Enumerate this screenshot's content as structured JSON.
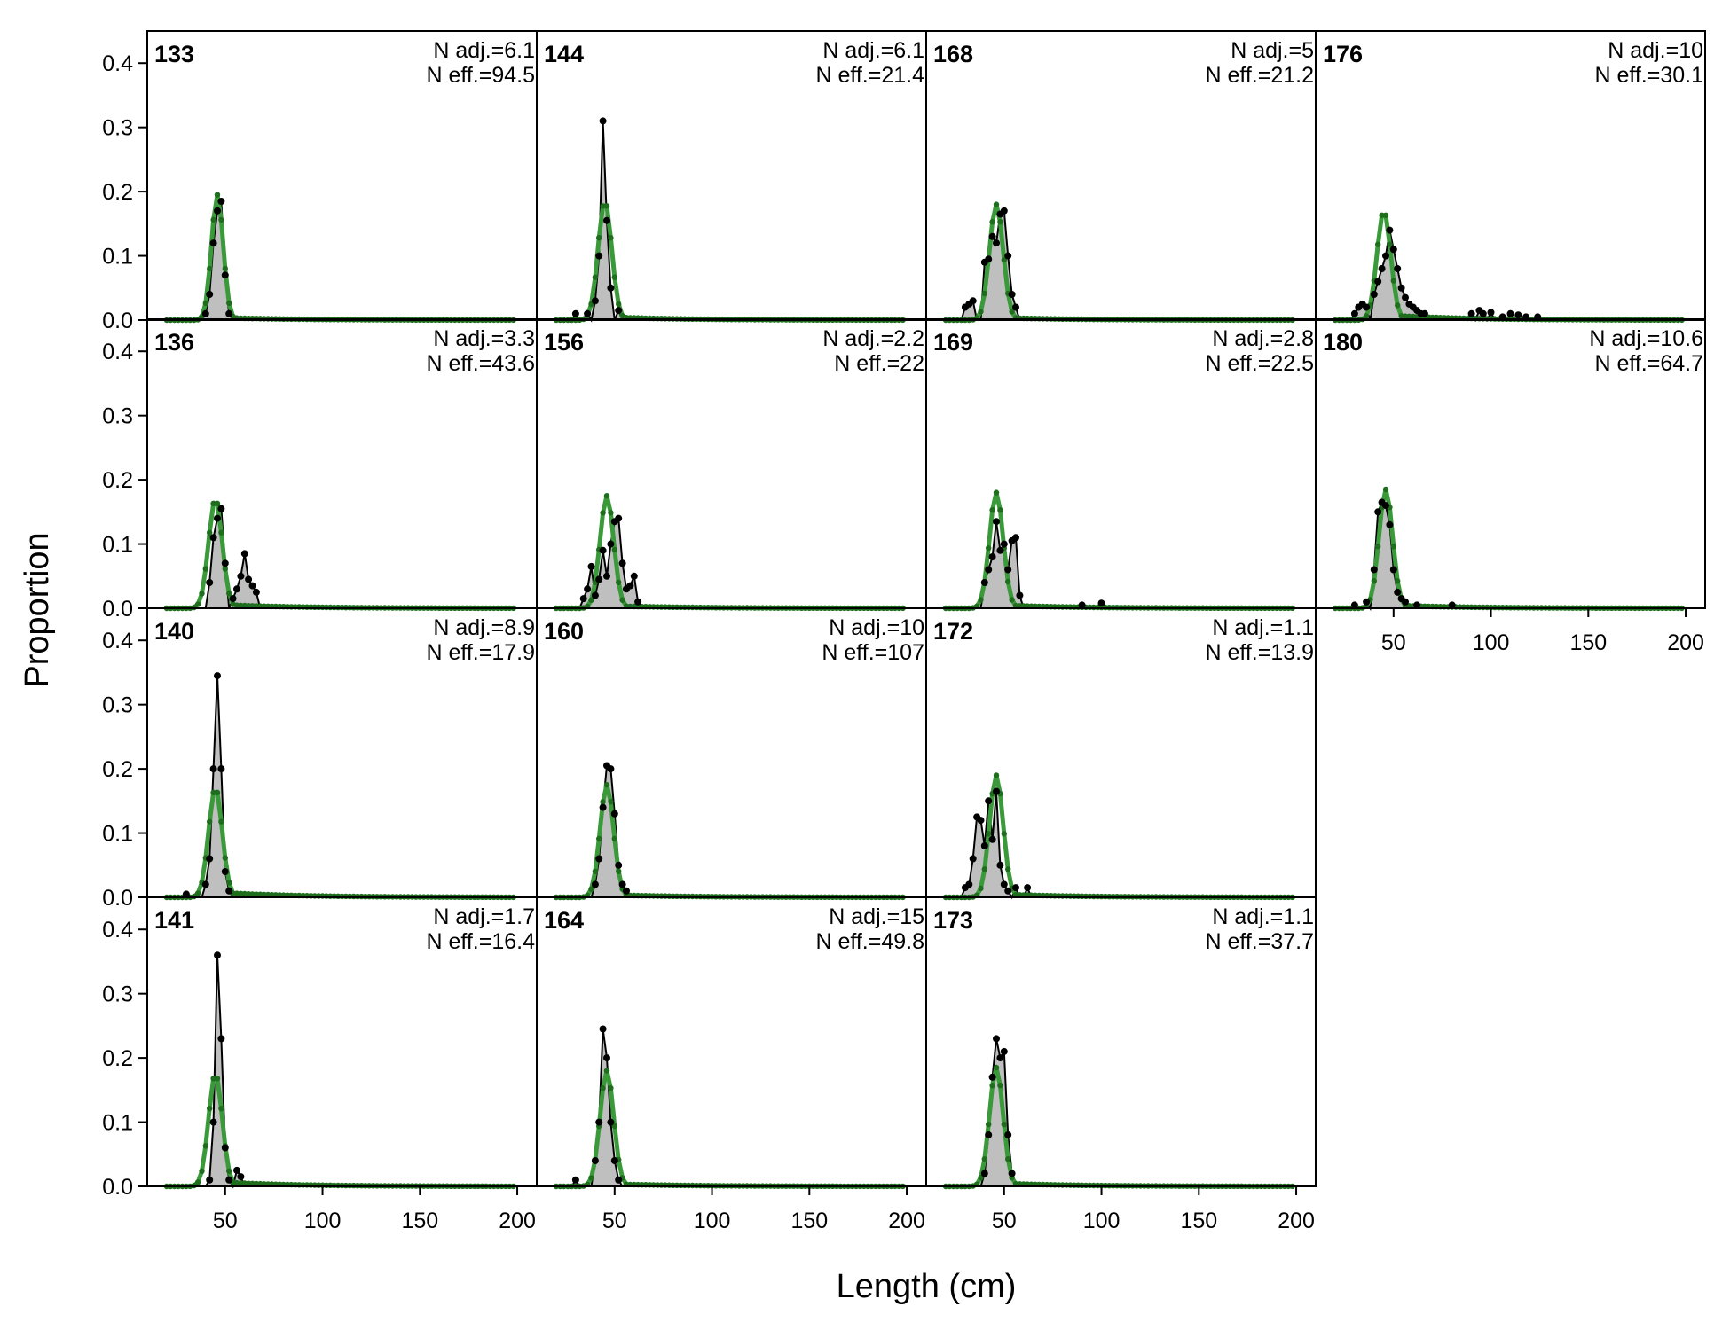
{
  "figure": {
    "xlabel": "Length (cm)",
    "ylabel": "Proportion"
  },
  "chart_data": {
    "type": "area",
    "xlim": [
      10,
      210
    ],
    "ylim": [
      0,
      0.45
    ],
    "x_ticks": [
      50,
      100,
      150,
      200
    ],
    "y_ticks": [
      "0.0",
      "0.1",
      "0.2",
      "0.3",
      "0.4"
    ],
    "colors": {
      "observed_fill": "#bfbfbf",
      "observed_line": "#000000",
      "expected_line": "#3a9a3a",
      "expected_points": "#1e6e1e",
      "zero_line": "#b0b0b0"
    },
    "bins": {
      "start": 20,
      "end": 198,
      "step": 2
    },
    "panels": [
      {
        "id": "133",
        "n_adj": "N adj.=6.1",
        "n_eff": "N eff.=94.5",
        "obs": [
          [
            40,
            0.01
          ],
          [
            42,
            0.04
          ],
          [
            44,
            0.12
          ],
          [
            46,
            0.17
          ],
          [
            48,
            0.185
          ],
          [
            50,
            0.07
          ],
          [
            52,
            0.01
          ]
        ],
        "exp": [
          46,
          0.195,
          3.0,
          0.004
        ]
      },
      {
        "id": "136",
        "n_adj": "N adj.=3.3",
        "n_eff": "N eff.=43.6",
        "obs": [
          [
            42,
            0.04
          ],
          [
            44,
            0.11
          ],
          [
            46,
            0.14
          ],
          [
            48,
            0.155
          ],
          [
            50,
            0.07
          ],
          [
            54,
            0.015
          ],
          [
            56,
            0.03
          ],
          [
            58,
            0.05
          ],
          [
            60,
            0.085
          ],
          [
            62,
            0.045
          ],
          [
            64,
            0.035
          ],
          [
            66,
            0.025
          ]
        ],
        "exp": [
          45,
          0.17,
          3.5,
          0.006
        ]
      },
      {
        "id": "140",
        "n_adj": "N adj.=8.9",
        "n_eff": "N eff.=17.9",
        "obs": [
          [
            30,
            0.005
          ],
          [
            40,
            0.02
          ],
          [
            42,
            0.06
          ],
          [
            44,
            0.2
          ],
          [
            46,
            0.345
          ],
          [
            48,
            0.2
          ],
          [
            50,
            0.04
          ],
          [
            52,
            0.01
          ]
        ],
        "exp": [
          45,
          0.17,
          3.5,
          0.008
        ]
      },
      {
        "id": "141",
        "n_adj": "N adj.=1.7",
        "n_eff": "N eff.=16.4",
        "obs": [
          [
            42,
            0.01
          ],
          [
            44,
            0.1
          ],
          [
            46,
            0.36
          ],
          [
            48,
            0.23
          ],
          [
            50,
            0.06
          ],
          [
            52,
            0.01
          ],
          [
            56,
            0.025
          ],
          [
            58,
            0.015
          ]
        ],
        "exp": [
          45,
          0.175,
          3.5,
          0.007
        ]
      },
      {
        "id": "144",
        "n_adj": "N adj.=6.1",
        "n_eff": "N eff.=21.4",
        "obs": [
          [
            30,
            0.01
          ],
          [
            36,
            0.01
          ],
          [
            40,
            0.03
          ],
          [
            42,
            0.1
          ],
          [
            44,
            0.31
          ],
          [
            46,
            0.155
          ],
          [
            48,
            0.05
          ],
          [
            52,
            0.015
          ]
        ],
        "exp": [
          45,
          0.185,
          3.5,
          0.005
        ]
      },
      {
        "id": "156",
        "n_adj": "N adj.=2.2",
        "n_eff": "N eff.=22",
        "obs": [
          [
            34,
            0.015
          ],
          [
            36,
            0.03
          ],
          [
            38,
            0.065
          ],
          [
            40,
            0.02
          ],
          [
            42,
            0.045
          ],
          [
            44,
            0.09
          ],
          [
            46,
            0.05
          ],
          [
            48,
            0.1
          ],
          [
            50,
            0.135
          ],
          [
            52,
            0.14
          ],
          [
            54,
            0.07
          ],
          [
            56,
            0.03
          ],
          [
            58,
            0.035
          ],
          [
            60,
            0.05
          ],
          [
            62,
            0.01
          ]
        ],
        "exp": [
          46,
          0.175,
          3.5,
          0.004
        ]
      },
      {
        "id": "160",
        "n_adj": "N adj.=10",
        "n_eff": "N eff.=107",
        "obs": [
          [
            40,
            0.02
          ],
          [
            42,
            0.06
          ],
          [
            44,
            0.14
          ],
          [
            46,
            0.205
          ],
          [
            48,
            0.2
          ],
          [
            50,
            0.13
          ],
          [
            52,
            0.05
          ],
          [
            54,
            0.02
          ],
          [
            56,
            0.01
          ]
        ],
        "exp": [
          46,
          0.175,
          3.5,
          0.004
        ]
      },
      {
        "id": "164",
        "n_adj": "N adj.=15",
        "n_eff": "N eff.=49.8",
        "obs": [
          [
            30,
            0.01
          ],
          [
            40,
            0.04
          ],
          [
            42,
            0.1
          ],
          [
            44,
            0.245
          ],
          [
            46,
            0.2
          ],
          [
            48,
            0.1
          ],
          [
            50,
            0.04
          ],
          [
            52,
            0.01
          ]
        ],
        "exp": [
          46,
          0.18,
          3.5,
          0.004
        ]
      },
      {
        "id": "168",
        "n_adj": "N adj.=5",
        "n_eff": "N eff.=21.2",
        "obs": [
          [
            30,
            0.02
          ],
          [
            32,
            0.025
          ],
          [
            34,
            0.03
          ],
          [
            40,
            0.09
          ],
          [
            42,
            0.095
          ],
          [
            44,
            0.13
          ],
          [
            46,
            0.12
          ],
          [
            48,
            0.165
          ],
          [
            50,
            0.17
          ],
          [
            52,
            0.1
          ],
          [
            54,
            0.04
          ],
          [
            56,
            0.02
          ]
        ],
        "exp": [
          46,
          0.18,
          3.5,
          0.004
        ]
      },
      {
        "id": "169",
        "n_adj": "N adj.=2.8",
        "n_eff": "N eff.=22.5",
        "obs": [
          [
            40,
            0.04
          ],
          [
            42,
            0.06
          ],
          [
            44,
            0.08
          ],
          [
            46,
            0.135
          ],
          [
            48,
            0.09
          ],
          [
            50,
            0.1
          ],
          [
            52,
            0.06
          ],
          [
            54,
            0.105
          ],
          [
            56,
            0.11
          ],
          [
            58,
            0.02
          ],
          [
            90,
            0.005
          ],
          [
            100,
            0.008
          ]
        ],
        "exp": [
          46,
          0.18,
          3.5,
          0.005
        ]
      },
      {
        "id": "172",
        "n_adj": "N adj.=1.1",
        "n_eff": "N eff.=13.9",
        "obs": [
          [
            30,
            0.015
          ],
          [
            32,
            0.02
          ],
          [
            34,
            0.06
          ],
          [
            36,
            0.125
          ],
          [
            38,
            0.12
          ],
          [
            40,
            0.08
          ],
          [
            42,
            0.15
          ],
          [
            44,
            0.09
          ],
          [
            46,
            0.165
          ],
          [
            48,
            0.05
          ],
          [
            50,
            0.02
          ],
          [
            52,
            0.01
          ],
          [
            56,
            0.015
          ],
          [
            62,
            0.015
          ]
        ],
        "exp": [
          46,
          0.19,
          3.5,
          0.005
        ]
      },
      {
        "id": "173",
        "n_adj": "N adj.=1.1",
        "n_eff": "N eff.=37.7",
        "obs": [
          [
            40,
            0.02
          ],
          [
            42,
            0.08
          ],
          [
            44,
            0.17
          ],
          [
            46,
            0.23
          ],
          [
            48,
            0.2
          ],
          [
            50,
            0.21
          ],
          [
            52,
            0.08
          ],
          [
            54,
            0.02
          ]
        ],
        "exp": [
          46,
          0.185,
          3.5,
          0.005
        ]
      },
      {
        "id": "176",
        "n_adj": "N adj.=10",
        "n_eff": "N eff.=30.1",
        "obs": [
          [
            30,
            0.01
          ],
          [
            32,
            0.02
          ],
          [
            34,
            0.025
          ],
          [
            36,
            0.02
          ],
          [
            40,
            0.04
          ],
          [
            42,
            0.06
          ],
          [
            44,
            0.08
          ],
          [
            46,
            0.1
          ],
          [
            48,
            0.14
          ],
          [
            50,
            0.11
          ],
          [
            52,
            0.08
          ],
          [
            54,
            0.05
          ],
          [
            56,
            0.035
          ],
          [
            58,
            0.025
          ],
          [
            60,
            0.02
          ],
          [
            62,
            0.015
          ],
          [
            64,
            0.01
          ],
          [
            66,
            0.01
          ],
          [
            90,
            0.01
          ],
          [
            94,
            0.015
          ],
          [
            96,
            0.01
          ],
          [
            100,
            0.012
          ],
          [
            106,
            0.005
          ],
          [
            110,
            0.01
          ],
          [
            114,
            0.008
          ],
          [
            118,
            0.005
          ],
          [
            124,
            0.005
          ]
        ],
        "exp": [
          45,
          0.17,
          3.5,
          0.008
        ]
      },
      {
        "id": "180",
        "n_adj": "N adj.=10.6",
        "n_eff": "N eff.=64.7",
        "obs": [
          [
            30,
            0.005
          ],
          [
            36,
            0.01
          ],
          [
            40,
            0.06
          ],
          [
            42,
            0.15
          ],
          [
            44,
            0.165
          ],
          [
            46,
            0.16
          ],
          [
            48,
            0.13
          ],
          [
            50,
            0.06
          ],
          [
            52,
            0.025
          ],
          [
            54,
            0.015
          ],
          [
            56,
            0.01
          ],
          [
            62,
            0.005
          ],
          [
            80,
            0.005
          ]
        ],
        "exp": [
          46,
          0.185,
          3.5,
          0.005
        ]
      }
    ]
  }
}
